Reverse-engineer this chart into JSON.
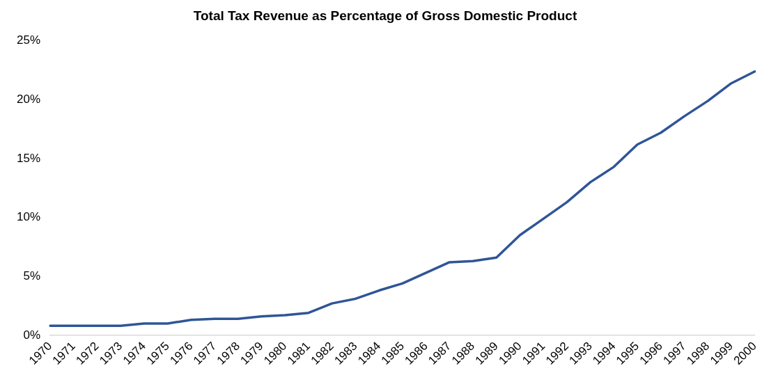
{
  "chart_data": {
    "type": "line",
    "title": "Total Tax Revenue as Percentage of Gross Domestic Product",
    "categories": [
      "1970",
      "1971",
      "1972",
      "1973",
      "1974",
      "1975",
      "1976",
      "1977",
      "1978",
      "1979",
      "1980",
      "1981",
      "1982",
      "1983",
      "1984",
      "1985",
      "1986",
      "1987",
      "1988",
      "1989",
      "1990",
      "1991",
      "1992",
      "1993",
      "1994",
      "1995",
      "1996",
      "1997",
      "1998",
      "1999",
      "2000"
    ],
    "series": [
      {
        "color": "#2f5597",
        "values": [
          0.8,
          0.8,
          0.8,
          0.8,
          1.0,
          1.0,
          1.3,
          1.4,
          1.4,
          1.6,
          1.7,
          1.9,
          2.7,
          3.1,
          3.8,
          4.4,
          5.3,
          6.2,
          6.3,
          6.6,
          8.5,
          9.9,
          11.3,
          13.0,
          14.3,
          16.2,
          17.2,
          18.6,
          19.9,
          21.4,
          22.4
        ]
      }
    ],
    "ylim": [
      0,
      25
    ],
    "yticks": [
      {
        "value": 0,
        "label": "0%"
      },
      {
        "value": 5,
        "label": "5%"
      },
      {
        "value": 10,
        "label": "10%"
      },
      {
        "value": 15,
        "label": "15%"
      },
      {
        "value": 20,
        "label": "20%"
      },
      {
        "value": 25,
        "label": "25%"
      }
    ],
    "grid": false,
    "legend": false,
    "marker": "none",
    "line_style": "solid"
  }
}
